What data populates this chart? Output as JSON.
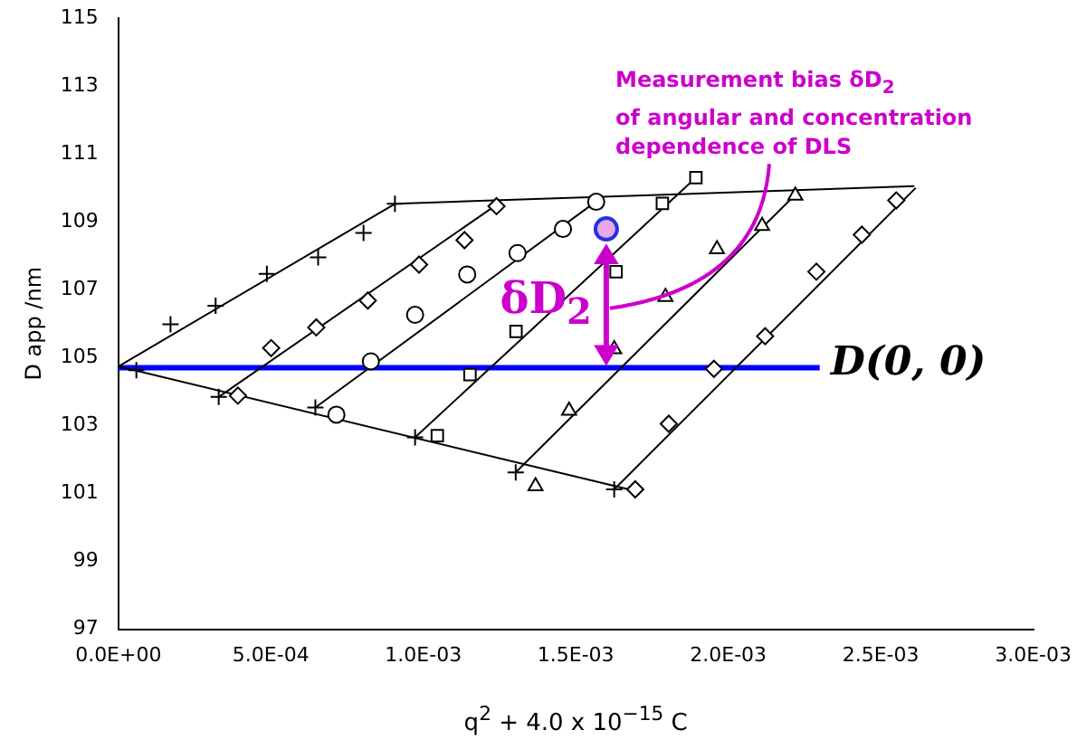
{
  "chart_data": {
    "type": "scatter",
    "xlabel": "q$^{2}$ + 4.0 x 10$^{−15}$ C",
    "ylabel": "D app /nm",
    "xlim": [
      0,
      0.003
    ],
    "xticks": [
      {
        "value": 0,
        "label": "0.0E+00"
      },
      {
        "value": 0.0005,
        "label": "5.0E-04"
      },
      {
        "value": 0.001,
        "label": "1.0E-03"
      },
      {
        "value": 0.0015,
        "label": "1.5E-03"
      },
      {
        "value": 0.002,
        "label": "2.0E-03"
      },
      {
        "value": 0.0025,
        "label": "2.5E-03"
      },
      {
        "value": 0.003,
        "label": "3.0E-03"
      }
    ],
    "ylim": [
      97,
      115
    ],
    "yticks": [
      97,
      99,
      101,
      103,
      105,
      107,
      109,
      111,
      113,
      115
    ],
    "grid": false,
    "legend": false,
    "series": [
      {
        "marker": "cross",
        "color": "#000000",
        "x": [
          5.9e-05,
          0.000171,
          0.000319,
          0.000487,
          0.000655,
          0.000804,
          0.000907
        ],
        "values": [
          104.63,
          105.98,
          106.53,
          107.47,
          107.95,
          108.67,
          109.53
        ]
      },
      {
        "marker": "cross",
        "color": "#000000",
        "x": [
          0.000329,
          0.000646,
          0.000973,
          0.001303,
          0.001626
        ],
        "values": [
          103.84,
          103.53,
          102.65,
          101.62,
          101.12
        ]
      },
      {
        "marker": "diamond",
        "color": "#000000",
        "x": [
          0.000392,
          0.000501,
          0.000649,
          0.000818,
          0.000986,
          0.001135,
          0.00124
        ],
        "values": [
          103.88,
          105.28,
          105.89,
          106.68,
          107.74,
          108.46,
          109.46
        ]
      },
      {
        "marker": "circle",
        "color": "#000000",
        "x": [
          0.000715,
          0.000828,
          0.000973,
          0.001144,
          0.001309,
          0.001458,
          0.001567
        ],
        "values": [
          103.32,
          104.89,
          106.26,
          107.45,
          108.08,
          108.79,
          109.59
        ]
      },
      {
        "marker": "square",
        "color": "#000000",
        "x": [
          0.001046,
          0.001153,
          0.001304,
          0.001632,
          0.001784,
          0.001894
        ],
        "values": [
          102.7,
          104.5,
          105.77,
          107.53,
          109.54,
          110.3
        ]
      },
      {
        "marker": "triangle",
        "color": "#000000",
        "x": [
          0.001368,
          0.001478,
          0.001626,
          0.001794,
          0.001963,
          0.002111,
          0.00222
        ],
        "values": [
          101.21,
          103.44,
          105.25,
          106.79,
          108.19,
          108.88,
          109.77
        ]
      },
      {
        "marker": "diamond",
        "color": "#000000",
        "x": [
          0.001695,
          0.001805,
          0.001953,
          0.002121,
          0.002289,
          0.002438,
          0.002551
        ],
        "values": [
          101.12,
          103.05,
          104.67,
          105.63,
          107.53,
          108.62,
          109.63
        ]
      },
      {
        "type": "line",
        "marker": "none",
        "color": "#000000",
        "x": [
          0,
          0.000907
        ],
        "values": [
          104.74,
          109.53
        ]
      },
      {
        "type": "line",
        "marker": "none",
        "color": "#000000",
        "x": [
          0,
          0.001705
        ],
        "values": [
          104.74,
          101.05
        ]
      },
      {
        "type": "line",
        "marker": "none",
        "color": "#000000",
        "x": [
          0.000907,
          0.00261
        ],
        "values": [
          109.53,
          110.05
        ]
      },
      {
        "type": "line",
        "marker": "none",
        "color": "#000000",
        "x": [
          0.000329,
          0.00124
        ],
        "values": [
          103.84,
          109.5
        ]
      },
      {
        "type": "line",
        "marker": "none",
        "color": "#000000",
        "x": [
          0.000646,
          0.001567
        ],
        "values": [
          103.53,
          109.6
        ]
      },
      {
        "type": "line",
        "marker": "none",
        "color": "#000000",
        "x": [
          0.000973,
          0.001894
        ],
        "values": [
          102.65,
          110.3
        ]
      },
      {
        "type": "line",
        "marker": "none",
        "color": "#000000",
        "x": [
          0.001303,
          0.00222
        ],
        "values": [
          101.62,
          109.8
        ]
      },
      {
        "type": "line",
        "marker": "none",
        "color": "#000000",
        "x": [
          0.001626,
          0.002615
        ],
        "values": [
          101.12,
          110.0
        ]
      },
      {
        "type": "line",
        "marker": "none",
        "name": "D(0, 0)",
        "color": "#0000ff",
        "x": [
          0,
          0.0023
        ],
        "values": [
          104.7,
          104.7
        ]
      },
      {
        "marker": "circle",
        "color": "#2233dd",
        "x": [
          0.0016
        ],
        "values": [
          108.79
        ]
      }
    ],
    "annotations": [
      "Measurement bias δD$_{2}$\nof angular and concentration\ndependence of DLS",
      "δD$_{2}$"
    ]
  }
}
